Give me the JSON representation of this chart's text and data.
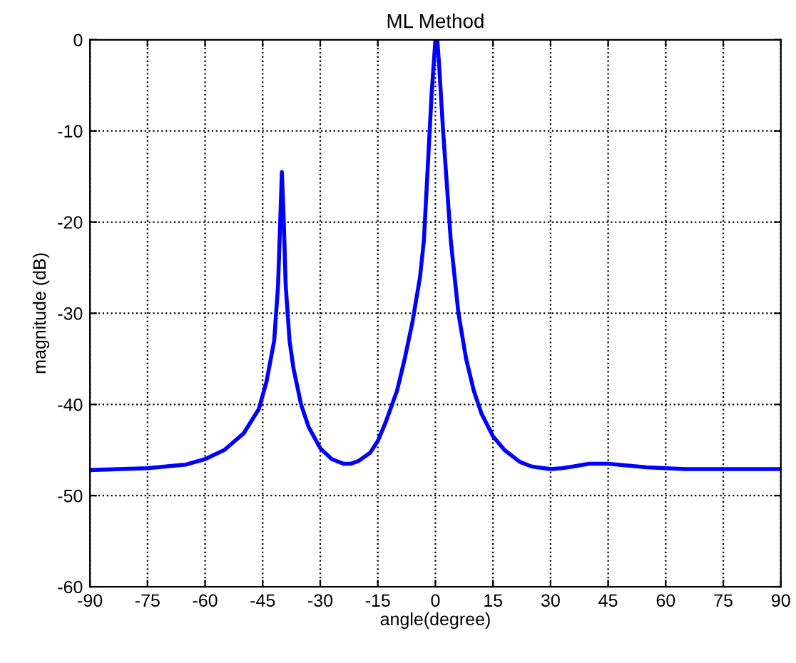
{
  "chart_data": {
    "type": "line",
    "title": "ML Method",
    "xlabel": "angle(degree)",
    "ylabel": "magnitude (dB)",
    "xlim": [
      -90,
      90
    ],
    "xticks": [
      -90,
      -75,
      -60,
      -45,
      -30,
      -15,
      0,
      15,
      30,
      45,
      60,
      75,
      90
    ],
    "ylim": [
      -60,
      0
    ],
    "yticks": [
      -60,
      -50,
      -40,
      -30,
      -20,
      -10,
      0
    ],
    "grid": true,
    "marker": "none",
    "line_style": "solid",
    "series": [
      {
        "color": "#0000ff",
        "x": [
          -90,
          -75,
          -65,
          -60,
          -55,
          -50,
          -46,
          -44,
          -42,
          -41,
          -40,
          -39.5,
          -39,
          -38,
          -37,
          -35,
          -33,
          -30,
          -27,
          -24,
          -22,
          -20,
          -17,
          -15,
          -13,
          -10,
          -8,
          -6,
          -4,
          -3,
          -2,
          -1,
          0,
          0.5,
          1,
          2,
          3,
          4,
          5,
          6,
          8,
          10,
          12,
          15,
          18,
          22,
          25,
          30,
          33,
          36,
          40,
          45,
          50,
          55,
          65,
          90
        ],
        "values": [
          -47.2,
          -47,
          -46.6,
          -46,
          -45,
          -43.2,
          -40.5,
          -37.5,
          -33,
          -27,
          -14.5,
          -20,
          -27,
          -33,
          -36,
          -40,
          -42.5,
          -44.8,
          -46,
          -46.5,
          -46.5,
          -46.2,
          -45.3,
          -44,
          -42,
          -38.5,
          -35,
          -31,
          -26,
          -22,
          -14,
          -6,
          0,
          0,
          -3,
          -10,
          -16,
          -22,
          -26,
          -30,
          -35,
          -38.5,
          -41,
          -43.5,
          -45,
          -46.3,
          -46.8,
          -47.1,
          -47,
          -46.8,
          -46.5,
          -46.5,
          -46.7,
          -46.9,
          -47.1,
          -47.1
        ]
      }
    ]
  }
}
